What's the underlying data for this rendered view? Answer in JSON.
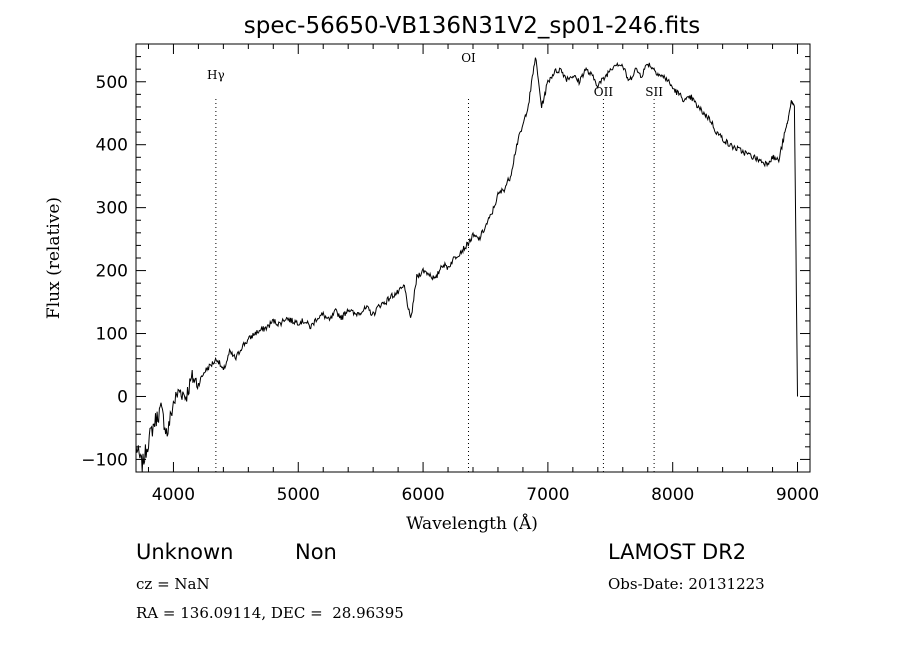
{
  "chart_data": {
    "type": "line",
    "title": "spec-56650-VB136N31V2_sp01-246.fits",
    "xlabel": "Wavelength (Å)",
    "ylabel": "Flux (relative)",
    "xlim": [
      3700,
      9100
    ],
    "ylim": [
      -120,
      560
    ],
    "xticks": [
      4000,
      5000,
      6000,
      7000,
      8000,
      9000
    ],
    "yticks": [
      -100,
      0,
      100,
      200,
      300,
      400,
      500
    ],
    "grid": false,
    "series": [
      {
        "x": [
          3700,
          3750,
          3800,
          3850,
          3900,
          3950,
          4000,
          4050,
          4100,
          4150,
          4200,
          4250,
          4300,
          4350,
          4400,
          4450,
          4500,
          4550,
          4600,
          4650,
          4700,
          4750,
          4800,
          4850,
          4900,
          4950,
          5000,
          5050,
          5100,
          5150,
          5200,
          5250,
          5300,
          5350,
          5400,
          5450,
          5500,
          5550,
          5600,
          5650,
          5700,
          5750,
          5800,
          5850,
          5900,
          5950,
          6000,
          6050,
          6100,
          6150,
          6200,
          6250,
          6300,
          6350,
          6400,
          6450,
          6500,
          6550,
          6600,
          6650,
          6700,
          6750,
          6800,
          6850,
          6900,
          6950,
          7000,
          7050,
          7100,
          7150,
          7200,
          7250,
          7300,
          7350,
          7400,
          7450,
          7500,
          7550,
          7600,
          7650,
          7700,
          7750,
          7800,
          7850,
          7900,
          7950,
          8000,
          8050,
          8100,
          8150,
          8200,
          8250,
          8300,
          8350,
          8400,
          8450,
          8500,
          8550,
          8600,
          8650,
          8700,
          8750,
          8800,
          8850,
          8900,
          8925,
          8950,
          8975,
          9000
        ],
        "y": [
          -80,
          -110,
          -70,
          -40,
          -20,
          -60,
          -10,
          10,
          0,
          30,
          20,
          40,
          50,
          60,
          40,
          70,
          60,
          80,
          90,
          100,
          105,
          110,
          120,
          115,
          125,
          120,
          118,
          120,
          110,
          125,
          130,
          120,
          135,
          125,
          140,
          130,
          135,
          140,
          130,
          145,
          150,
          160,
          165,
          175,
          120,
          190,
          200,
          195,
          185,
          210,
          205,
          220,
          230,
          240,
          255,
          250,
          270,
          290,
          320,
          330,
          350,
          400,
          430,
          470,
          540,
          460,
          500,
          515,
          520,
          505,
          510,
          500,
          520,
          510,
          495,
          505,
          520,
          530,
          525,
          500,
          520,
          510,
          530,
          520,
          510,
          505,
          490,
          480,
          470,
          475,
          460,
          450,
          440,
          420,
          410,
          400,
          395,
          390,
          385,
          380,
          375,
          370,
          380,
          375,
          420,
          440,
          470,
          460,
          0
        ]
      }
    ],
    "lines": [
      {
        "label": "Hγ",
        "x": 4340
      },
      {
        "label": "OI",
        "x": 6364
      },
      {
        "label": "OII",
        "x": 7445
      },
      {
        "label": "SII",
        "x": 7851
      }
    ]
  },
  "info": {
    "class_label": "Unknown",
    "subclass_label": "Non",
    "survey": "LAMOST DR2",
    "cz": "cz = NaN",
    "obs_date": "Obs-Date: 20131223",
    "coords": "RA = 136.09114, DEC =  28.96395"
  }
}
